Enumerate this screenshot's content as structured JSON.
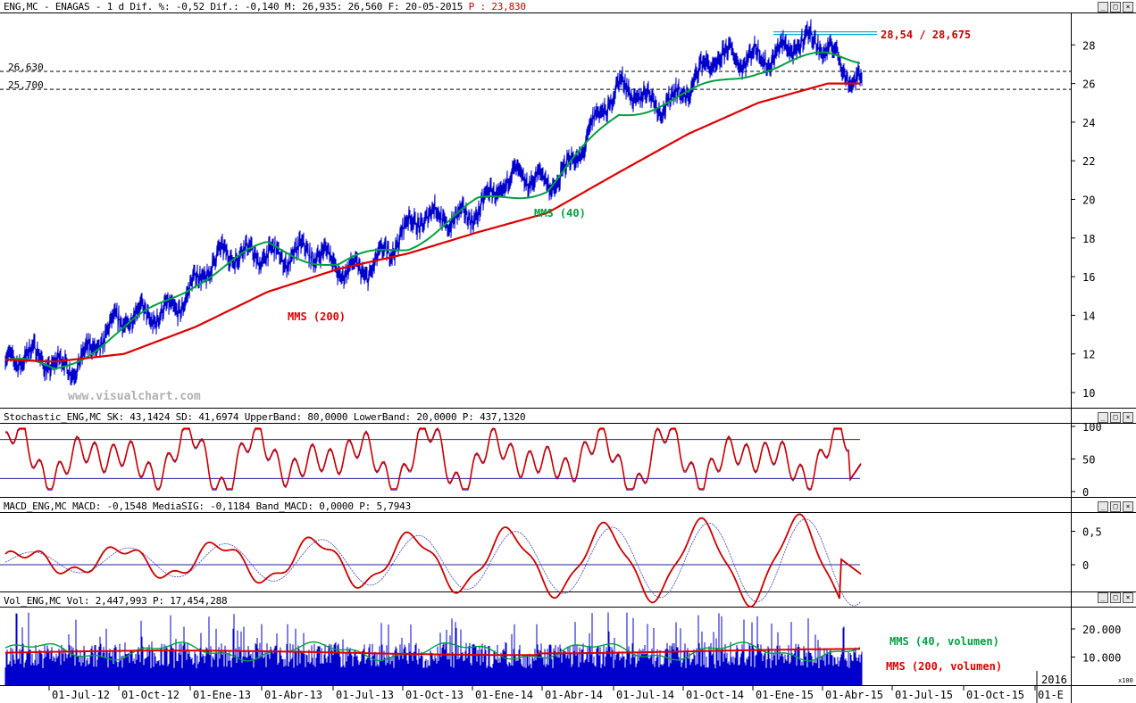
{
  "header": {
    "symbol": "ENG,MC",
    "name": "ENAGAS",
    "period": "1 d",
    "dif_pct_label": "Dif. %:",
    "dif_pct": "-0,52",
    "dif_label": "Dif.:",
    "dif": "-0,140",
    "m_label": "M:",
    "m": "26,935",
    "m2": "26,560",
    "date_label": "F:",
    "date": "20-05-2015",
    "p_label": "P :",
    "p": "23,830"
  },
  "price_panel": {
    "hlines": [
      {
        "label": "26,630",
        "value": 26.63
      },
      {
        "label": "25,700",
        "value": 25.7
      }
    ],
    "resistance_label": "28,54 / 28,675",
    "resistance_values": [
      28.54,
      28.675
    ],
    "watermark": "www.visualchart.com",
    "ma40_label": "MMS (40)",
    "ma200_label": "MMS (200)",
    "yticks": [
      "10",
      "12",
      "14",
      "16",
      "18",
      "20",
      "22",
      "24",
      "26",
      "28"
    ],
    "colors": {
      "price": "#0000cc",
      "ma40": "#00a040",
      "ma200": "#dd0000",
      "resistance": "#00aacc"
    }
  },
  "stoch_panel": {
    "header": "Stochastic_ENG,MC SK: 43,1424 SD: 41,6974 UpperBand: 80,0000 LowerBand: 20,0000 P: 437,1320",
    "yticks": [
      "0",
      "50",
      "100"
    ],
    "upper_band": 80,
    "lower_band": 20
  },
  "macd_panel": {
    "header": "MACD_ENG,MC MACD: -0,1548 MediaSIG: -0,1184 Band_MACD: 0,0000 P: 5,7943",
    "yticks": [
      "0",
      "0,5"
    ]
  },
  "vol_panel": {
    "header": "Vol_ENG,MC Vol: 2,447,993 P: 17,454,288",
    "yticks": [
      "10.000",
      "20.000"
    ],
    "ma40_label": "MMS (40, volumen)",
    "ma200_label": "MMS (200, volumen)",
    "scale_note": "x100"
  },
  "xaxis": {
    "labels": [
      "01-Jul-12",
      "01-Oct-12",
      "01-Ene-13",
      "01-Abr-13",
      "01-Jul-13",
      "01-Oct-13",
      "01-Ene-14",
      "01-Abr-14",
      "01-Jul-14",
      "01-Oct-14",
      "01-Ene-15",
      "01-Abr-15",
      "01-Jul-15",
      "01-Oct-15",
      "01-E"
    ],
    "year_marker": "2016"
  },
  "chart_data": [
    {
      "type": "line",
      "panel": "price",
      "x": [
        "01-Jul-12",
        "01-Oct-12",
        "01-Ene-13",
        "01-Abr-13",
        "01-Jul-13",
        "01-Oct-13",
        "01-Ene-14",
        "01-Abr-14",
        "01-Jul-14",
        "01-Oct-14",
        "01-Ene-15",
        "01-Abr-15",
        "20-05-2015"
      ],
      "series": [
        {
          "name": "",
          "values": [
            11.6,
            13.2,
            15.7,
            17.8,
            16.2,
            18.1,
            20.0,
            21.0,
            25.2,
            25.8,
            28.0,
            27.5,
            26.56
          ]
        },
        {
          "name": "MMS (40)",
          "values": [
            11.2,
            13.2,
            15.8,
            17.6,
            16.6,
            17.6,
            19.8,
            20.6,
            24.4,
            25.4,
            26.8,
            27.4,
            27.3
          ]
        },
        {
          "name": "MMS (200)",
          "values": [
            11.6,
            12.0,
            13.4,
            15.2,
            16.4,
            17.2,
            18.3,
            19.3,
            21.4,
            23.4,
            25.0,
            26.0,
            26.0
          ]
        }
      ],
      "ylim": [
        9.5,
        29.5
      ]
    },
    {
      "type": "line",
      "panel": "stochastic",
      "series": [
        {
          "name": "SK",
          "values": [
            43.14
          ]
        },
        {
          "name": "SD",
          "values": [
            41.7
          ]
        }
      ],
      "ylim": [
        0,
        100
      ]
    },
    {
      "type": "line",
      "panel": "macd",
      "series": [
        {
          "name": "MACD",
          "values": [
            -0.1548
          ]
        },
        {
          "name": "MediaSIG",
          "values": [
            -0.1184
          ]
        }
      ],
      "ylim": [
        -0.45,
        0.85
      ]
    },
    {
      "type": "bar",
      "panel": "volume",
      "values": [
        24479.93
      ],
      "ylim": [
        0,
        27000
      ]
    }
  ]
}
